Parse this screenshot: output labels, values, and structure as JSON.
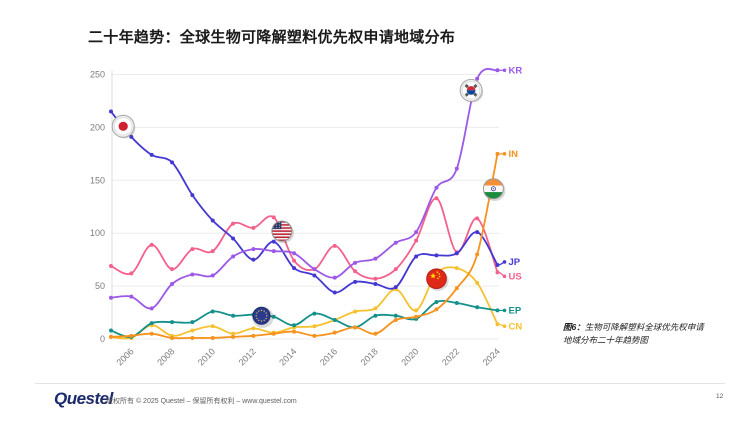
{
  "page": {
    "title": "二十年趋势：全球生物可降解塑料优先权申请地域分布",
    "caption": {
      "prefix": "图6：",
      "line1": "生物可降解塑料全球优先权申请",
      "line2": "地域分布二十年趋势图"
    },
    "footer": {
      "logo_text": "Questel",
      "copyright": "版权所有 © 2025 Questel – 保留所有权利 – www.questel.com",
      "page_number": "12"
    }
  },
  "chart_data": {
    "type": "line",
    "title": "二十年趋势：全球生物可降解塑料优先权申请地域分布",
    "xlabel": "",
    "ylabel": "",
    "x": [
      2005,
      2006,
      2007,
      2008,
      2009,
      2010,
      2011,
      2012,
      2013,
      2014,
      2015,
      2016,
      2017,
      2018,
      2019,
      2020,
      2021,
      2022,
      2023,
      2024
    ],
    "x_tick_labels": [
      "2006",
      "2008",
      "2010",
      "2012",
      "2014",
      "2016",
      "2018",
      "2020",
      "2022",
      "2024"
    ],
    "ylim": [
      0,
      250
    ],
    "y_ticks": [
      0,
      50,
      100,
      150,
      200,
      250
    ],
    "grid": "horizontal",
    "legend": "line-end-labels",
    "series": [
      {
        "name": "KR",
        "color": "#9c59e8",
        "values": [
          39,
          40,
          29,
          52,
          61,
          60,
          78,
          85,
          83,
          81,
          66,
          58,
          72,
          76,
          91,
          101,
          143,
          161,
          246,
          254
        ]
      },
      {
        "name": "IN",
        "color": "#f6921e",
        "values": [
          2,
          3,
          5,
          1,
          1,
          1,
          2,
          3,
          5,
          7,
          3,
          6,
          11,
          5,
          18,
          21,
          28,
          48,
          80,
          175
        ]
      },
      {
        "name": "JP",
        "color": "#4438d2",
        "values": [
          215,
          191,
          174,
          167,
          136,
          112,
          95,
          75,
          92,
          67,
          60,
          44,
          54,
          52,
          49,
          78,
          79,
          81,
          101,
          70
        ]
      },
      {
        "name": "US",
        "color": "#f4618c",
        "values": [
          69,
          62,
          89,
          66,
          85,
          83,
          109,
          105,
          115,
          74,
          66,
          88,
          64,
          57,
          66,
          93,
          133,
          82,
          114,
          63
        ]
      },
      {
        "name": "EP",
        "color": "#14918a",
        "values": [
          8,
          2,
          15,
          16,
          16,
          26,
          22,
          23,
          21,
          13,
          24,
          18,
          11,
          22,
          22,
          19,
          35,
          34,
          30,
          27
        ]
      },
      {
        "name": "CN",
        "color": "#f6c12f",
        "values": [
          2,
          1,
          13,
          3,
          8,
          12,
          5,
          10,
          6,
          11,
          12,
          18,
          26,
          29,
          47,
          27,
          62,
          67,
          53,
          14
        ]
      }
    ],
    "flag_markers": [
      {
        "country": "japan",
        "series": "JP",
        "year": 2005.6,
        "value": 201
      },
      {
        "country": "eu",
        "series": "EP",
        "year": 2012.4,
        "value": 22
      },
      {
        "country": "usa",
        "series": "US",
        "year": 2013.4,
        "value": 102
      },
      {
        "country": "china",
        "series": "CN",
        "year": 2021.0,
        "value": 57
      },
      {
        "country": "korea",
        "series": "KR",
        "year": 2022.7,
        "value": 235
      },
      {
        "country": "india",
        "series": "IN",
        "year": 2023.8,
        "value": 142
      }
    ]
  }
}
